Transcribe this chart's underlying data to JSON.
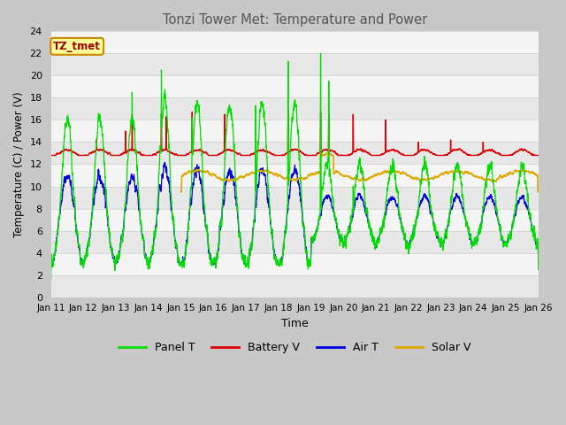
{
  "title": "Tonzi Tower Met: Temperature and Power",
  "xlabel": "Time",
  "ylabel": "Temperature (C) / Power (V)",
  "ylim": [
    0,
    24
  ],
  "yticks": [
    0,
    2,
    4,
    6,
    8,
    10,
    12,
    14,
    16,
    18,
    20,
    22,
    24
  ],
  "colors": {
    "panel_t": "#00dd00",
    "battery_v": "#dd0000",
    "air_t": "#0000dd",
    "solar_v": "#ddaa00"
  },
  "legend_labels": [
    "Panel T",
    "Battery V",
    "Air T",
    "Solar V"
  ],
  "bg_color": "#e8e8e8",
  "plot_bg": "#f0f0f0",
  "tz_label": "TZ_tmet",
  "tz_bg": "#ffff99",
  "tz_border": "#cc8800",
  "title_color": "#555555"
}
